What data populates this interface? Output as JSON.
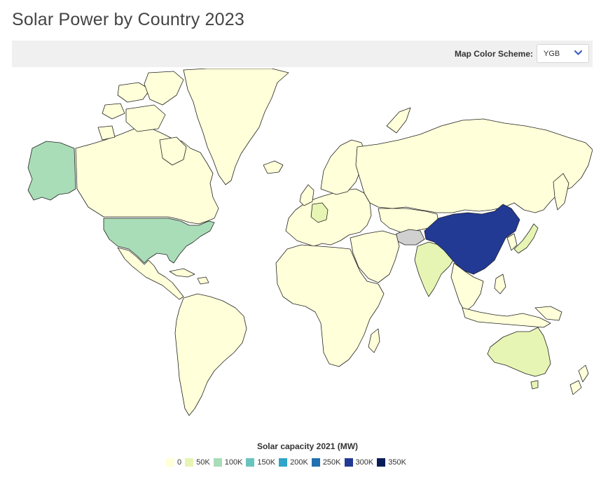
{
  "page": {
    "title": "Solar Power by Country 2023"
  },
  "toolbar": {
    "color_scheme_label": "Map Color Scheme:",
    "color_scheme_value": "YGB"
  },
  "colors": {
    "no_data": "#d0d0d0",
    "border": "#222222",
    "ocean": "#ffffff",
    "chevron": "#3d5fc4"
  },
  "legend": {
    "title": "Solar capacity 2021 (MW)",
    "items": [
      {
        "label": "0",
        "color": "#ffffd9"
      },
      {
        "label": "50K",
        "color": "#e6f5b3"
      },
      {
        "label": "100K",
        "color": "#a9ddb7"
      },
      {
        "label": "150K",
        "color": "#6ac4be"
      },
      {
        "label": "200K",
        "color": "#2fa5c9"
      },
      {
        "label": "250K",
        "color": "#2170b2"
      },
      {
        "label": "300K",
        "color": "#223a94"
      },
      {
        "label": "350K",
        "color": "#081d58"
      }
    ]
  },
  "map": {
    "regions": [
      {
        "name": "china",
        "level": 6
      },
      {
        "name": "united-states",
        "level": 2
      },
      {
        "name": "alaska",
        "level": 2
      },
      {
        "name": "japan",
        "level": 1
      },
      {
        "name": "india",
        "level": 1
      },
      {
        "name": "germany",
        "level": 1
      },
      {
        "name": "australia",
        "level": 1
      },
      {
        "name": "canada",
        "level": 0
      },
      {
        "name": "greenland",
        "level": 0
      },
      {
        "name": "russia",
        "level": 0
      },
      {
        "name": "south-america",
        "level": 0
      },
      {
        "name": "africa",
        "level": 0
      },
      {
        "name": "europe",
        "level": 0
      },
      {
        "name": "middle-east",
        "level": 0
      },
      {
        "name": "central-asia",
        "level": 0
      },
      {
        "name": "southeast-asia",
        "level": 0
      },
      {
        "name": "indonesia",
        "level": 0
      },
      {
        "name": "new-zealand",
        "level": 0
      },
      {
        "name": "afghanistan",
        "level": -1
      }
    ]
  }
}
